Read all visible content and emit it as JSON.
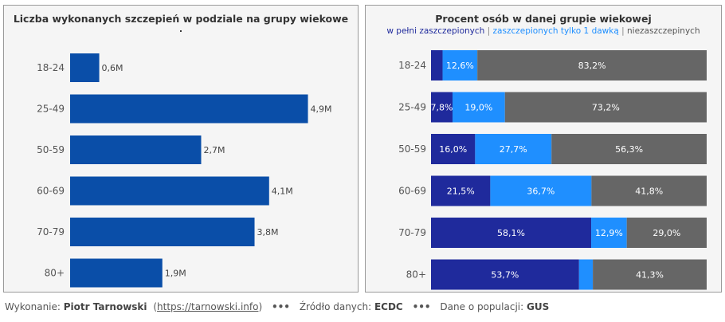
{
  "chart_data": [
    {
      "type": "bar",
      "title": "Liczba wykonanych szczepień w podziale na grupy wiekowe",
      "title_line2": ".",
      "categories": [
        "18-24",
        "25-49",
        "50-59",
        "60-69",
        "70-79",
        "80+"
      ],
      "values": [
        0.6,
        4.9,
        2.7,
        4.1,
        3.8,
        1.9
      ],
      "value_labels": [
        "0,6M",
        "4,9M",
        "2,7M",
        "4,1M",
        "3,8M",
        "1,9M"
      ],
      "xlim": [
        0,
        5.4
      ],
      "grid": false,
      "colors": {
        "bar": "#0a4ea8"
      }
    },
    {
      "type": "bar",
      "stacked": true,
      "title": "Procent osób  w danej grupie wiekowej",
      "legend": [
        "w pełni zaszczepionych",
        "zaszczepionych tylko 1 dawką",
        "niezaszczepinych"
      ],
      "legend_separator": "|",
      "categories": [
        "18-24",
        "25-49",
        "50-59",
        "60-69",
        "70-79",
        "80+"
      ],
      "series": [
        {
          "name": "w pełni zaszczepionych",
          "values": [
            4.2,
            7.8,
            16.0,
            21.5,
            58.1,
            53.7
          ],
          "labels": [
            "",
            "7,8%",
            "16,0%",
            "21,5%",
            "58,1%",
            "53,7%"
          ],
          "color": "#1f2a9c"
        },
        {
          "name": "zaszczepionych tylko 1 dawką",
          "values": [
            12.6,
            19.0,
            27.7,
            36.7,
            12.9,
            5.0
          ],
          "labels": [
            "12,6%",
            "19,0%",
            "27,7%",
            "36,7%",
            "12,9%",
            ""
          ],
          "color": "#1f8fff"
        },
        {
          "name": "niezaszczepinych",
          "values": [
            83.2,
            73.2,
            56.3,
            41.8,
            29.0,
            41.3
          ],
          "labels": [
            "83,2%",
            "73,2%",
            "56,3%",
            "41,8%",
            "29,0%",
            "41,3%"
          ],
          "color": "#666666"
        }
      ],
      "xlim": [
        0,
        100
      ],
      "grid": false
    }
  ],
  "footer": {
    "author_prefix": "Wykonanie: ",
    "author": "Piotr Tarnowski",
    "link_open": "(",
    "link": "https://tarnowski.info",
    "link_close": ")",
    "dots1": "•••",
    "source_prefix": "Źródło danych: ",
    "source": "ECDC",
    "dots2": "•••",
    "pop_prefix": "Dane o populacji:  ",
    "pop": "GUS"
  }
}
